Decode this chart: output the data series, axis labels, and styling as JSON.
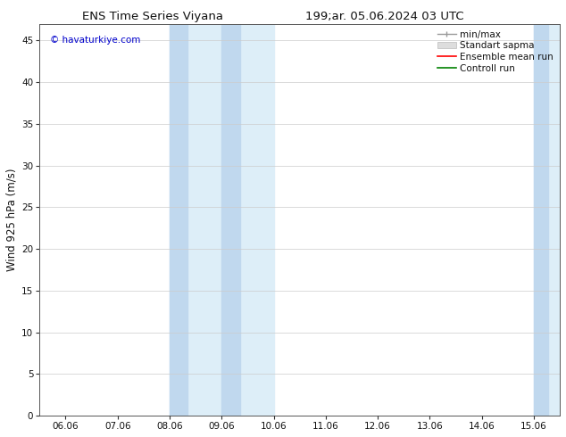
{
  "title_left": "ENS Time Series Viyana",
  "title_right": "199;ar. 05.06.2024 03 UTC",
  "ylabel": "Wind 925 hPa (m/s)",
  "watermark": "© havaturkiye.com",
  "watermark_color": "#0000cc",
  "x_tick_labels": [
    "06.06",
    "07.06",
    "08.06",
    "09.06",
    "10.06",
    "11.06",
    "12.06",
    "13.06",
    "14.06",
    "15.06"
  ],
  "x_tick_positions": [
    0,
    1,
    2,
    3,
    4,
    5,
    6,
    7,
    8,
    9
  ],
  "ylim": [
    0,
    47
  ],
  "yticks": [
    0,
    5,
    10,
    15,
    20,
    25,
    30,
    35,
    40,
    45
  ],
  "xlim": [
    -0.5,
    9.5
  ],
  "bg_color": "#ffffff",
  "shade_outer_color": "#ddeef8",
  "shade_inner_color": "#c0d8ee",
  "legend_items": [
    {
      "label": "min/max",
      "color": "#999999",
      "lw": 1.0
    },
    {
      "label": "Standart sapma",
      "color": "#cccccc",
      "lw": 6
    },
    {
      "label": "Ensemble mean run",
      "color": "#ff0000",
      "lw": 1.2
    },
    {
      "label": "Controll run",
      "color": "#008000",
      "lw": 1.2
    }
  ],
  "font_color": "#111111",
  "title_fontsize": 9.5,
  "tick_fontsize": 7.5,
  "ylabel_fontsize": 8.5,
  "legend_fontsize": 7.5
}
